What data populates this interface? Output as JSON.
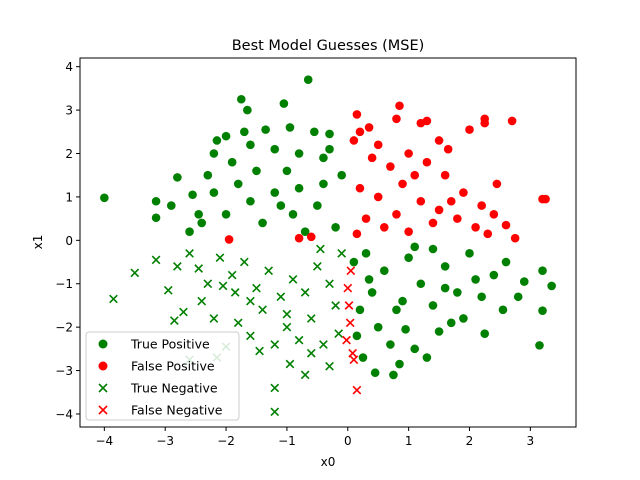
{
  "chart_data": {
    "type": "scatter",
    "title": "Best Model Guesses (MSE)",
    "xlabel": "x0",
    "ylabel": "x1",
    "xlim": [
      -4.4,
      3.75
    ],
    "ylim": [
      -4.3,
      4.2
    ],
    "x_ticks": [
      -4,
      -3,
      -2,
      -1,
      0,
      1,
      2,
      3
    ],
    "y_ticks": [
      -4,
      -3,
      -2,
      -1,
      0,
      1,
      2,
      3,
      4
    ],
    "grid": false,
    "legend_position": "lower-left",
    "series": [
      {
        "name": "True Positive",
        "marker": "circle",
        "color": "#008000",
        "points": [
          [
            -4.0,
            0.98
          ],
          [
            -3.15,
            0.9
          ],
          [
            -3.15,
            0.52
          ],
          [
            -2.8,
            1.45
          ],
          [
            -2.55,
            1.05
          ],
          [
            -2.45,
            0.6
          ],
          [
            -2.2,
            2.0
          ],
          [
            -2.15,
            2.3
          ],
          [
            -2.0,
            2.4
          ],
          [
            -1.75,
            3.25
          ],
          [
            -1.7,
            2.5
          ],
          [
            -1.65,
            3.0
          ],
          [
            -1.35,
            2.55
          ],
          [
            -1.05,
            3.15
          ],
          [
            -0.95,
            2.6
          ],
          [
            -0.65,
            3.7
          ],
          [
            -0.55,
            2.5
          ],
          [
            -0.3,
            2.45
          ],
          [
            -2.3,
            1.5
          ],
          [
            -1.9,
            1.8
          ],
          [
            -1.5,
            1.6
          ],
          [
            -1.2,
            2.1
          ],
          [
            -0.8,
            2.0
          ],
          [
            -0.4,
            1.9
          ],
          [
            -2.6,
            0.2
          ],
          [
            -2.4,
            0.4
          ],
          [
            -2.0,
            0.6
          ],
          [
            -1.6,
            0.9
          ],
          [
            -1.2,
            1.1
          ],
          [
            -0.8,
            1.2
          ],
          [
            -0.4,
            1.3
          ],
          [
            -0.1,
            1.5
          ],
          [
            -1.8,
            1.3
          ],
          [
            -1.0,
            1.6
          ],
          [
            -0.5,
            0.8
          ],
          [
            -0.2,
            0.3
          ],
          [
            -1.4,
            0.4
          ],
          [
            -2.2,
            1.1
          ],
          [
            -0.7,
            0.2
          ],
          [
            -0.9,
            0.6
          ],
          [
            -0.3,
            2.1
          ],
          [
            -1.6,
            2.2
          ],
          [
            -2.9,
            0.8
          ],
          [
            -1.1,
            0.8
          ],
          [
            0.1,
            -0.5
          ],
          [
            0.4,
            -1.2
          ],
          [
            0.8,
            -1.6
          ],
          [
            1.2,
            -1.0
          ],
          [
            1.6,
            -0.6
          ],
          [
            2.0,
            -0.3
          ],
          [
            2.4,
            -0.8
          ],
          [
            2.8,
            -1.3
          ],
          [
            3.2,
            -0.7
          ],
          [
            3.35,
            -1.05
          ],
          [
            3.2,
            -1.62
          ],
          [
            3.15,
            -2.42
          ],
          [
            2.55,
            -1.6
          ],
          [
            2.25,
            -2.15
          ],
          [
            1.9,
            -1.8
          ],
          [
            1.5,
            -2.1
          ],
          [
            1.1,
            -2.5
          ],
          [
            0.85,
            -2.85
          ],
          [
            0.75,
            -3.1
          ],
          [
            0.45,
            -3.05
          ],
          [
            0.25,
            -2.7
          ],
          [
            0.95,
            -2.05
          ],
          [
            1.4,
            -1.5
          ],
          [
            1.8,
            -1.2
          ],
          [
            2.2,
            -1.3
          ],
          [
            2.6,
            -0.5
          ],
          [
            0.3,
            -0.3
          ],
          [
            0.6,
            -0.7
          ],
          [
            1.0,
            -0.4
          ],
          [
            1.4,
            -0.2
          ],
          [
            0.2,
            -1.6
          ],
          [
            0.5,
            -2.0
          ],
          [
            0.9,
            -1.4
          ],
          [
            1.3,
            -2.7
          ],
          [
            1.7,
            -1.9
          ],
          [
            2.1,
            -0.9
          ],
          [
            0.15,
            -2.2
          ],
          [
            0.7,
            -2.4
          ],
          [
            1.6,
            -1.1
          ],
          [
            2.9,
            -0.95
          ],
          [
            0.35,
            -0.9
          ],
          [
            1.1,
            -0.15
          ]
        ]
      },
      {
        "name": "False Positive",
        "marker": "circle",
        "color": "#ff0000",
        "points": [
          [
            0.1,
            2.3
          ],
          [
            0.15,
            2.9
          ],
          [
            0.2,
            2.5
          ],
          [
            0.5,
            2.2
          ],
          [
            0.8,
            2.8
          ],
          [
            0.85,
            3.1
          ],
          [
            1.2,
            2.7
          ],
          [
            1.3,
            2.75
          ],
          [
            1.5,
            2.3
          ],
          [
            1.65,
            2.1
          ],
          [
            2.0,
            2.55
          ],
          [
            2.25,
            2.7
          ],
          [
            2.25,
            2.8
          ],
          [
            2.7,
            2.75
          ],
          [
            3.2,
            0.95
          ],
          [
            3.25,
            0.95
          ],
          [
            2.75,
            0.05
          ],
          [
            2.6,
            0.35
          ],
          [
            2.4,
            0.6
          ],
          [
            2.2,
            0.8
          ],
          [
            1.9,
            1.1
          ],
          [
            1.6,
            1.5
          ],
          [
            1.3,
            1.8
          ],
          [
            1.0,
            2.0
          ],
          [
            0.7,
            1.7
          ],
          [
            0.4,
            1.9
          ],
          [
            0.2,
            1.2
          ],
          [
            0.5,
            1.0
          ],
          [
            0.9,
            1.3
          ],
          [
            1.2,
            0.9
          ],
          [
            1.5,
            0.7
          ],
          [
            1.8,
            0.5
          ],
          [
            2.1,
            0.3
          ],
          [
            0.3,
            0.5
          ],
          [
            0.6,
            0.3
          ],
          [
            1.0,
            0.2
          ],
          [
            1.4,
            0.4
          ],
          [
            0.15,
            0.15
          ],
          [
            0.8,
            0.6
          ],
          [
            1.1,
            1.5
          ],
          [
            0.35,
            2.6
          ],
          [
            2.45,
            1.3
          ],
          [
            1.7,
            0.9
          ],
          [
            2.3,
            0.15
          ],
          [
            -1.95,
            0.02
          ],
          [
            -0.8,
            0.05
          ],
          [
            -0.6,
            0.08
          ]
        ]
      },
      {
        "name": "True Negative",
        "marker": "x",
        "color": "#008000",
        "points": [
          [
            -3.85,
            -1.35
          ],
          [
            -3.5,
            -0.75
          ],
          [
            -3.15,
            -0.45
          ],
          [
            -2.95,
            -1.15
          ],
          [
            -2.85,
            -1.85
          ],
          [
            -2.7,
            -1.65
          ],
          [
            -2.6,
            -2.75
          ],
          [
            -2.45,
            -0.65
          ],
          [
            -2.3,
            -1.0
          ],
          [
            -2.15,
            -2.7
          ],
          [
            -2.0,
            -2.45
          ],
          [
            -1.8,
            -1.9
          ],
          [
            -1.6,
            -2.2
          ],
          [
            -1.4,
            -1.6
          ],
          [
            -1.2,
            -2.4
          ],
          [
            -1.0,
            -2.0
          ],
          [
            -0.8,
            -2.3
          ],
          [
            -0.6,
            -1.8
          ],
          [
            -0.4,
            -2.4
          ],
          [
            -0.2,
            -1.5
          ],
          [
            -1.2,
            -3.4
          ],
          [
            -1.2,
            -3.95
          ],
          [
            -0.7,
            -3.1
          ],
          [
            -0.3,
            -2.9
          ],
          [
            -2.1,
            -0.4
          ],
          [
            -1.9,
            -0.8
          ],
          [
            -1.7,
            -0.5
          ],
          [
            -1.5,
            -1.1
          ],
          [
            -1.3,
            -0.7
          ],
          [
            -1.1,
            -1.3
          ],
          [
            -0.9,
            -0.9
          ],
          [
            -0.7,
            -1.2
          ],
          [
            -0.5,
            -0.6
          ],
          [
            -0.3,
            -1.0
          ],
          [
            -0.1,
            -0.3
          ],
          [
            -2.4,
            -1.4
          ],
          [
            -2.2,
            -1.8
          ],
          [
            -1.6,
            -1.4
          ],
          [
            -1.0,
            -1.7
          ],
          [
            -0.6,
            -2.6
          ],
          [
            -2.6,
            -0.3
          ],
          [
            -2.8,
            -0.6
          ],
          [
            -0.15,
            -2.15
          ],
          [
            -0.45,
            -0.2
          ],
          [
            -1.85,
            -1.2
          ],
          [
            -0.95,
            -2.85
          ],
          [
            -1.45,
            -2.55
          ],
          [
            -2.05,
            -1.05
          ]
        ]
      },
      {
        "name": "False Negative",
        "marker": "x",
        "color": "#ff0000",
        "points": [
          [
            0.0,
            -1.1
          ],
          [
            0.02,
            -1.5
          ],
          [
            0.04,
            -1.9
          ],
          [
            0.08,
            -2.6
          ],
          [
            0.1,
            -2.75
          ],
          [
            0.15,
            -3.45
          ],
          [
            -0.02,
            -2.3
          ],
          [
            0.05,
            -0.7
          ]
        ]
      }
    ]
  }
}
